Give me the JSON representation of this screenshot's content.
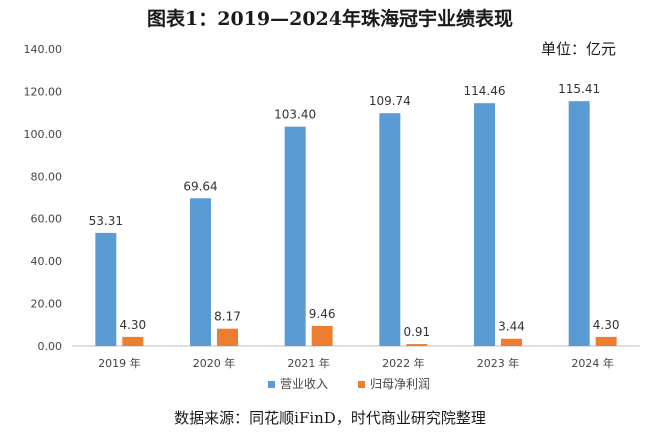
{
  "title": "图表1：2019—2024年珠海冠宇业绩表现",
  "unit": "单位：亿元",
  "source": "数据来源：同花顺iFinD，时代商业研究院整理",
  "colors": {
    "revenue": "#5b9bd5",
    "profit": "#ed7d31",
    "axis": "#bfbfbf"
  },
  "chart_data": {
    "type": "bar",
    "categories": [
      "2019 年",
      "2020 年",
      "2021 年",
      "2022 年",
      "2023 年",
      "2024 年"
    ],
    "series": [
      {
        "name": "营业收入",
        "values": [
          53.31,
          69.64,
          103.4,
          109.74,
          114.46,
          115.41
        ],
        "labels": [
          "53.31",
          "69.64",
          "103.40",
          "109.74",
          "114.46",
          "115.41"
        ]
      },
      {
        "name": "归母净利润",
        "values": [
          4.3,
          8.17,
          9.46,
          0.91,
          3.44,
          4.3
        ],
        "labels": [
          "4.30",
          "8.17",
          "9.46",
          "0.91",
          "3.44",
          "4.30"
        ]
      }
    ],
    "y_ticks": [
      "0.00",
      "20.00",
      "40.00",
      "60.00",
      "80.00",
      "100.00",
      "120.00",
      "140.00"
    ],
    "ylim": [
      0,
      140
    ],
    "grid": false,
    "legend_position": "bottom"
  }
}
